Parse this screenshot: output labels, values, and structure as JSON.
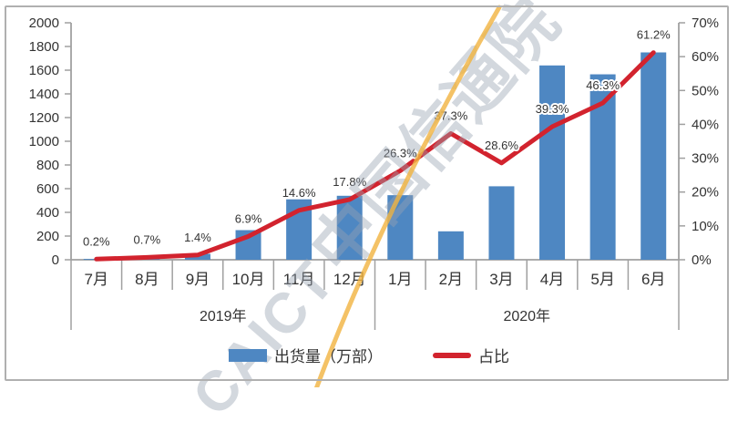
{
  "colors": {
    "bar": "#4e87c2",
    "line": "#d2232e",
    "axis": "#a0a0a0",
    "separator": "#a0a0a0",
    "text": "#333333",
    "frame": "#b0b0b0",
    "watermark": "#99a3b2",
    "swoosh": "#f2b440"
  },
  "watermark": {
    "latin": "CAICT",
    "cjk": "中国信通院"
  },
  "chart_data": {
    "type": "bar+line combo",
    "categories": [
      "7月",
      "8月",
      "9月",
      "10月",
      "11月",
      "12月",
      "1月",
      "2月",
      "3月",
      "4月",
      "5月",
      "6月"
    ],
    "year_groups": [
      {
        "label": "2019年",
        "months": 6
      },
      {
        "label": "2020年",
        "months": 6
      }
    ],
    "series": [
      {
        "name": "出货量（万部）",
        "type": "bar",
        "axis": "left",
        "values": [
          7,
          22,
          50,
          250,
          510,
          540,
          545,
          240,
          620,
          1640,
          1565,
          1750
        ]
      },
      {
        "name": "占比",
        "type": "line",
        "axis": "right",
        "values": [
          0.2,
          0.7,
          1.4,
          6.9,
          14.6,
          17.8,
          26.3,
          37.3,
          28.6,
          39.3,
          46.3,
          61.2
        ],
        "point_labels": [
          "0.2%",
          "0.7%",
          "1.4%",
          "6.9%",
          "14.6%",
          "17.8%",
          "26.3%",
          "37.3%",
          "28.6%",
          "39.3%",
          "46.3%",
          "61.2%"
        ]
      }
    ],
    "left_axis": {
      "min": 0,
      "max": 2000,
      "step": 200,
      "tick_labels": [
        "0",
        "200",
        "400",
        "600",
        "800",
        "1000",
        "1200",
        "1400",
        "1600",
        "1800",
        "2000"
      ]
    },
    "right_axis": {
      "min": 0,
      "max": 70,
      "step": 10,
      "tick_labels": [
        "0%",
        "10%",
        "20%",
        "30%",
        "40%",
        "50%",
        "60%",
        "70%"
      ]
    },
    "legend": [
      {
        "label": "出货量（万部）",
        "marker": "bar"
      },
      {
        "label": "占比",
        "marker": "line"
      }
    ]
  }
}
